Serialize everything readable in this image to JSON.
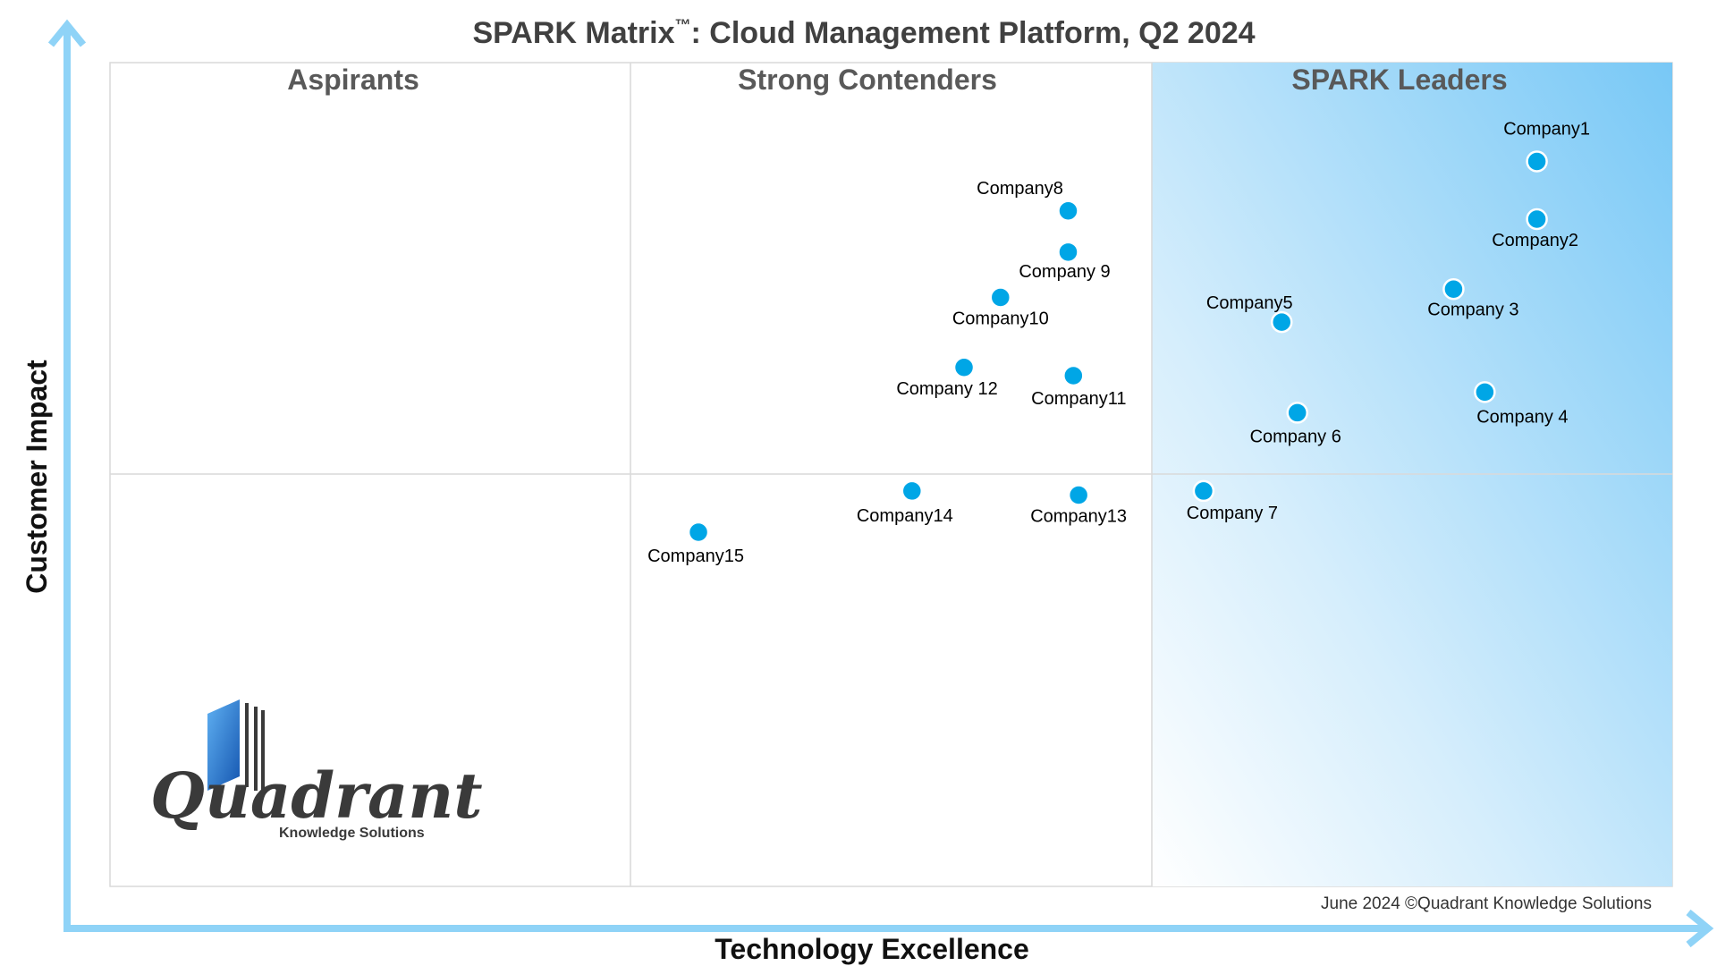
{
  "chart_data": {
    "type": "scatter",
    "title": "SPARK Matrix",
    "title_tm": "™",
    "title_rest": ": Cloud Management Platform, Q2 2024",
    "xlabel": "Technology Excellence",
    "ylabel": "Customer Impact",
    "xlim": [
      0,
      3
    ],
    "ylim": [
      0,
      2
    ],
    "grid": false,
    "quadrants": [
      "Aspirants",
      "Strong Contenders",
      "SPARK Leaders"
    ],
    "points": [
      {
        "label": "Company1",
        "x": 2.74,
        "y": 1.76
      },
      {
        "label": "Company2",
        "x": 2.74,
        "y": 1.62
      },
      {
        "label": "Company 3",
        "x": 2.58,
        "y": 1.45
      },
      {
        "label": "Company 4",
        "x": 2.64,
        "y": 1.2
      },
      {
        "label": "Company5",
        "x": 2.25,
        "y": 1.37
      },
      {
        "label": "Company 6",
        "x": 2.28,
        "y": 1.15
      },
      {
        "label": "Company 7",
        "x": 2.1,
        "y": 0.96
      },
      {
        "label": "Company8",
        "x": 1.84,
        "y": 1.64
      },
      {
        "label": "Company 9",
        "x": 1.84,
        "y": 1.54
      },
      {
        "label": "Company10",
        "x": 1.71,
        "y": 1.43
      },
      {
        "label": "Company11",
        "x": 1.85,
        "y": 1.24
      },
      {
        "label": "Company 12",
        "x": 1.64,
        "y": 1.26
      },
      {
        "label": "Company13",
        "x": 1.86,
        "y": 0.95
      },
      {
        "label": "Company14",
        "x": 1.54,
        "y": 0.96
      },
      {
        "label": "Company15",
        "x": 1.13,
        "y": 0.86
      }
    ]
  },
  "footnote": "June 2024 ©Quadrant Knowledge Solutions",
  "logo": {
    "word": "Quadrant",
    "sub": "Knowledge Solutions"
  },
  "colors": {
    "axis_arrow": "#8fd3f7",
    "point_fill": "#00a6e6",
    "point_stroke": "#ffffff",
    "leaders_shade": "#7ecbf7",
    "title_text": "#404040",
    "quadrant_label": "#595959",
    "logo_blue": "#1f6fc6"
  }
}
